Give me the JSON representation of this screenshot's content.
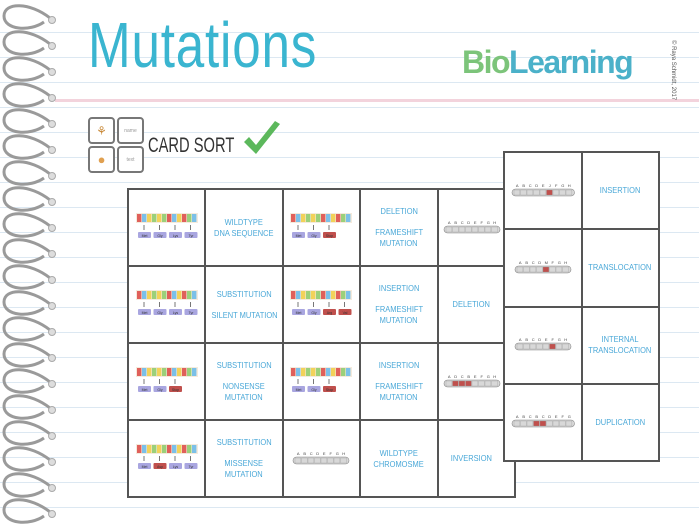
{
  "title": "Mutations",
  "logo": {
    "text_bio": "Bio",
    "text_learning": "Learning",
    "copyright": "© Raya Schmidt, 2017"
  },
  "card_sort": {
    "label": "CARD SORT",
    "icon_labels": [
      "",
      "name",
      "",
      "text"
    ]
  },
  "colors": {
    "title": "#3ab5d0",
    "label": "#4aa8d8",
    "check": "#5cb85c",
    "mutant": "#c0504d",
    "codon": "#a9a6e0"
  },
  "left_table": [
    {
      "type": "dna",
      "codons": [
        "Met",
        "Gly",
        "Lys",
        "Tyr"
      ],
      "mut": []
    },
    {
      "type": "text",
      "lines": [
        "WILDTYPE",
        "DNA SEQUENCE"
      ]
    },
    {
      "type": "dna",
      "codons": [
        "Met",
        "Gly",
        "Stop"
      ],
      "mut": [
        2
      ]
    },
    {
      "type": "text",
      "lines": [
        "DELETION",
        "",
        "FRAMESHIFT",
        "MUTATION"
      ]
    },
    {
      "type": "chrom",
      "letters": [
        "A",
        "B",
        "C",
        "D",
        "E",
        "F",
        "G",
        "H"
      ],
      "hl": []
    },
    {
      "type": "dna",
      "codons": [
        "Met",
        "Gly",
        "Lys",
        "Tyr"
      ],
      "mut": []
    },
    {
      "type": "text",
      "lines": [
        "SUBSTITUTION",
        "",
        "SILENT MUTATION"
      ]
    },
    {
      "type": "dna",
      "codons": [
        "Met",
        "Gly",
        "Arg",
        "Val"
      ],
      "mut": [
        2,
        3
      ]
    },
    {
      "type": "text",
      "lines": [
        "INSERTION",
        "",
        "FRAMESHIFT",
        "MUTATION"
      ]
    },
    {
      "type": "text",
      "lines": [
        "DELETION"
      ]
    },
    {
      "type": "dna",
      "codons": [
        "Met",
        "Gly",
        "Stop"
      ],
      "mut": [
        2
      ]
    },
    {
      "type": "text",
      "lines": [
        "SUBSTITUTION",
        "",
        "NONSENSE MUTATION"
      ]
    },
    {
      "type": "dna",
      "codons": [
        "Met",
        "Gly",
        "Stop"
      ],
      "mut": [
        2
      ]
    },
    {
      "type": "text",
      "lines": [
        "INSERTION",
        "",
        "FRAMESHIFT",
        "MUTATION"
      ]
    },
    {
      "type": "chrom",
      "letters": [
        "A",
        "D",
        "C",
        "B",
        "E",
        "F",
        "G",
        "H"
      ],
      "hl": [
        1,
        2,
        3
      ]
    },
    {
      "type": "dna",
      "codons": [
        "Met",
        "Asp",
        "Lys",
        "Tyr"
      ],
      "mut": [
        1
      ]
    },
    {
      "type": "text",
      "lines": [
        "SUBSTITUTION",
        "",
        "MISSENSE MUTATION"
      ]
    },
    {
      "type": "chrom",
      "letters": [
        "A",
        "B",
        "C",
        "D",
        "E",
        "F",
        "G",
        "H"
      ],
      "hl": []
    },
    {
      "type": "text",
      "lines": [
        "WILDTYPE",
        "CHROMOSME"
      ]
    },
    {
      "type": "text",
      "lines": [
        "INVERSION"
      ]
    }
  ],
  "right_table": [
    {
      "type": "chrom",
      "letters": [
        "A",
        "B",
        "C",
        "D",
        "E",
        "J",
        "F",
        "G",
        "H"
      ],
      "hl": [
        5
      ]
    },
    {
      "type": "text",
      "lines": [
        "INSERTION"
      ]
    },
    {
      "type": "chrom",
      "letters": [
        "A",
        "B",
        "C",
        "D",
        "M",
        "F",
        "G",
        "H"
      ],
      "hl": [
        4
      ]
    },
    {
      "type": "text",
      "lines": [
        "TRANSLOCATION"
      ]
    },
    {
      "type": "chrom",
      "letters": [
        "A",
        "B",
        "C",
        "D",
        "E",
        "F",
        "G",
        "H"
      ],
      "hl": [
        5
      ]
    },
    {
      "type": "text",
      "lines": [
        "INTERNAL",
        "TRANSLOCATION"
      ]
    },
    {
      "type": "chrom",
      "letters": [
        "A",
        "B",
        "C",
        "B",
        "C",
        "D",
        "E",
        "F",
        "G"
      ],
      "hl": [
        3,
        4
      ]
    },
    {
      "type": "text",
      "lines": [
        "DUPLICATION"
      ]
    }
  ]
}
